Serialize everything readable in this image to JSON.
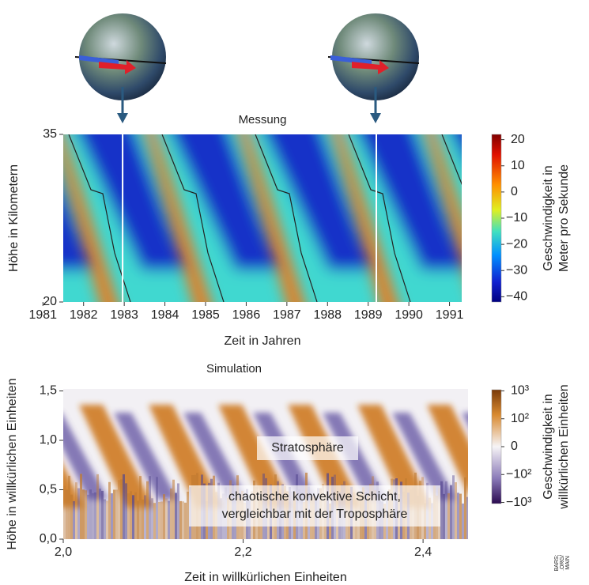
{
  "chart_data": [
    {
      "type": "heatmap",
      "title": "Messung",
      "x_label": "Zeit in Jahren",
      "y_label": "Höhe in Kilometern",
      "xlim": [
        1981.5,
        1991.3
      ],
      "xticks": [
        1981,
        1982,
        1983,
        1984,
        1985,
        1986,
        1987,
        1988,
        1989,
        1990,
        1991
      ],
      "ylim": [
        20,
        35
      ],
      "yticks": [
        20,
        35
      ],
      "markers": [
        1982.96,
        1989.2
      ],
      "colorbar": {
        "label": [
          "Geschwindigkeit in",
          "Meter pro Sekunde"
        ],
        "scale": "linear",
        "lim": [
          -42,
          22
        ],
        "ticks": [
          20,
          10,
          0,
          {
            "value": -10,
            "label": "−10"
          },
          {
            "value": -20,
            "label": "−20"
          },
          {
            "value": -30,
            "label": "−30"
          },
          {
            "value": -40,
            "label": "−40"
          }
        ]
      }
    },
    {
      "type": "heatmap",
      "title": "Simulation",
      "x_label": "Zeit in willkürlichen Einheiten",
      "y_label": "Höhe in willkürlichen Einheiten",
      "xlim": [
        2.0,
        2.45
      ],
      "xticks": [
        {
          "value": 2.0,
          "label": "2,0"
        },
        {
          "value": 2.2,
          "label": "2,2"
        },
        {
          "value": 2.4,
          "label": "2,4"
        }
      ],
      "ylim": [
        0,
        1.52
      ],
      "yticks": [
        {
          "value": 0,
          "label": "0,0"
        },
        {
          "value": 0.5,
          "label": "0,5"
        },
        {
          "value": 1.0,
          "label": "1,0"
        },
        {
          "value": 1.5,
          "label": "1,5"
        }
      ],
      "annotations": [
        [
          "Stratosphäre"
        ],
        [
          "chaotische konvektive Schicht,",
          "vergleichbar mit der Troposphäre"
        ]
      ],
      "colorbar": {
        "label": [
          "Geschwindigkeit in",
          "willkürlichen Einheiten"
        ],
        "scale": "symlog",
        "linthresh": 100,
        "lim": [
          -1100,
          1100
        ],
        "ticks": [
          {
            "value": 1000,
            "label": "10³"
          },
          {
            "value": 100,
            "label": "10²"
          },
          0,
          {
            "value": -100,
            "label": "−10²"
          },
          {
            "value": -1000,
            "label": "−10³"
          }
        ]
      }
    }
  ],
  "credit": [
    "BARS;",
    ".ORG/",
    "MAIN"
  ]
}
